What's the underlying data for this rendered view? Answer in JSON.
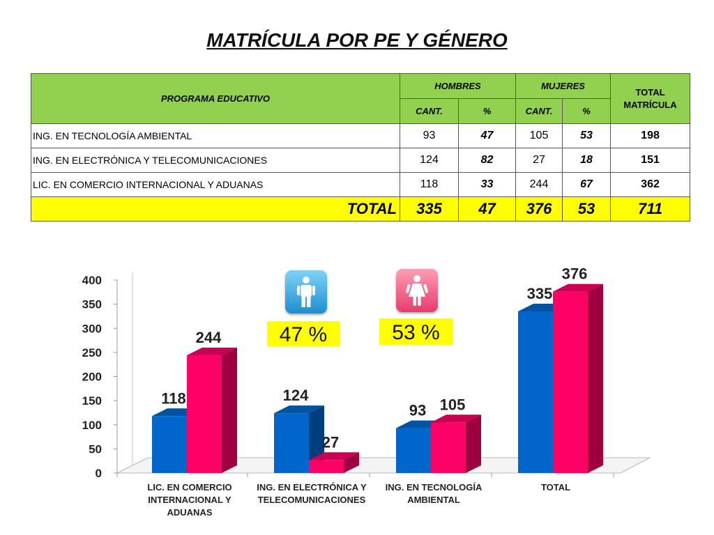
{
  "title": "MATRÍCULA POR PE Y GÉNERO",
  "table": {
    "headers": {
      "programa": "PROGRAMA EDUCATIVO",
      "hombres": "HOMBRES",
      "mujeres": "MUJERES",
      "total": "TOTAL MATRÍCULA",
      "cant": "CANT.",
      "pct": "%"
    },
    "rows": [
      {
        "programa": "ING. EN TECNOLOGÍA AMBIENTAL",
        "h_cant": "93",
        "h_pct": "47",
        "m_cant": "105",
        "m_pct": "53",
        "total": "198"
      },
      {
        "programa": "ING. EN ELECTRÓNICA Y TELECOMUNICACIONES",
        "h_cant": "124",
        "h_pct": "82",
        "m_cant": "27",
        "m_pct": "18",
        "total": "151"
      },
      {
        "programa": "LIC. EN COMERCIO INTERNACIONAL Y ADUANAS",
        "h_cant": "118",
        "h_pct": "33",
        "m_cant": "244",
        "m_pct": "67",
        "total": "362"
      }
    ],
    "total_row": {
      "label": "TOTAL",
      "h_cant": "335",
      "h_pct": "47",
      "m_cant": "376",
      "m_pct": "53",
      "total": "711"
    }
  },
  "badges": {
    "hombres_pct": "47 %",
    "mujeres_pct": "53 %",
    "hombres_icon": "male-person-icon",
    "mujeres_icon": "female-person-icon"
  },
  "colors": {
    "hombres": "#0066cc",
    "mujeres": "#ff0066",
    "header_bg": "#92d050",
    "total_bg": "#ffff00"
  },
  "chart_data": {
    "type": "bar",
    "title": "",
    "xlabel": "",
    "ylabel": "",
    "categories": [
      "LIC. EN COMERCIO INTERNACIONAL Y ADUANAS",
      "ING. EN ELECTRÓNICA Y TELECOMUNICACIONES",
      "ING. EN TECNOLOGÍA AMBIENTAL",
      "TOTAL"
    ],
    "category_lines": [
      [
        "LIC. EN COMERCIO",
        "INTERNACIONAL Y",
        "ADUANAS"
      ],
      [
        "ING. EN ELECTRÓNICA Y",
        "TELECOMUNICACIONES"
      ],
      [
        "ING. EN TECNOLOGÍA",
        "AMBIENTAL"
      ],
      [
        "TOTAL"
      ]
    ],
    "series": [
      {
        "values": [
          118,
          124,
          93,
          335
        ],
        "color": "#0066cc"
      },
      {
        "values": [
          244,
          27,
          105,
          376
        ],
        "color": "#ff0066"
      }
    ],
    "ylim": [
      0,
      400
    ],
    "yticks": [
      0,
      50,
      100,
      150,
      200,
      250,
      300,
      350,
      400
    ],
    "grid": false,
    "legend": "none",
    "style": "3d-column"
  }
}
